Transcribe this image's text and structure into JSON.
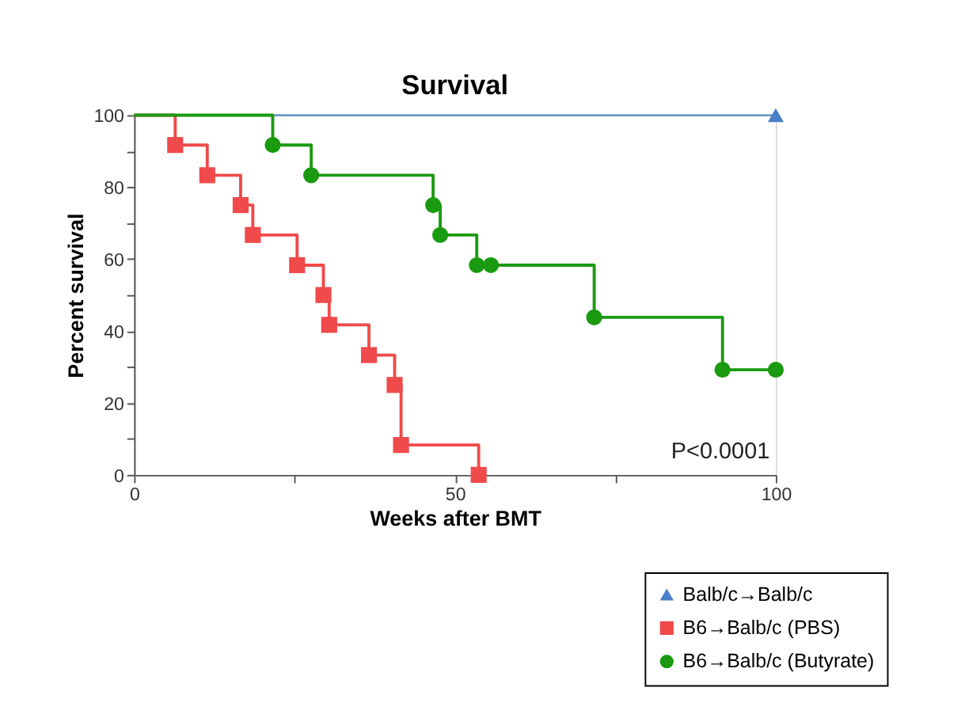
{
  "chart_data": {
    "type": "step",
    "title": "Survival",
    "xlabel": "Weeks after BMT",
    "ylabel": "Percent survival",
    "xlim": [
      0,
      100
    ],
    "ylim": [
      0,
      100
    ],
    "xticks": [
      0,
      {
        "value": 25,
        "label": null
      },
      50,
      {
        "value": 75,
        "label": null
      },
      100
    ],
    "yticks": [
      0,
      {
        "value": 10,
        "label": null
      },
      20,
      {
        "value": 30,
        "label": null
      },
      40,
      {
        "value": 50,
        "label": null
      },
      60,
      {
        "value": 70,
        "label": null
      },
      80,
      {
        "value": 90,
        "label": null
      },
      100
    ],
    "grid": false,
    "legend": "bottom right",
    "line_style": "solid",
    "annotations": [
      "P<0.0001"
    ],
    "series": [
      {
        "name": "Balb/c→Balb/c",
        "color": "#4a7fc7",
        "marker": "triangle",
        "x": [
          0,
          100
        ],
        "values": [
          100,
          100
        ]
      },
      {
        "name": "B6→Balb/c (PBS)",
        "color": "#f04a4a",
        "marker": "square",
        "x": [
          0,
          6.4,
          11.4,
          16.6,
          18.5,
          25.4,
          29.5,
          30.4,
          36.6,
          40.6,
          41.6,
          53.7
        ],
        "values": [
          100,
          91.7,
          83.3,
          75,
          66.7,
          58.3,
          50,
          41.7,
          33.3,
          25,
          8.3,
          0
        ]
      },
      {
        "name": "B6→Balb/c (Butyrate)",
        "color": "#1a9a10",
        "marker": "circle",
        "x": [
          0,
          21.6,
          27.6,
          46.6,
          47.7,
          53.4,
          55.6,
          71.7,
          91.7,
          100
        ],
        "values": [
          100,
          91.7,
          83.3,
          75,
          66.7,
          58.3,
          58.3,
          43.8,
          29.2,
          29.2
        ]
      }
    ]
  }
}
